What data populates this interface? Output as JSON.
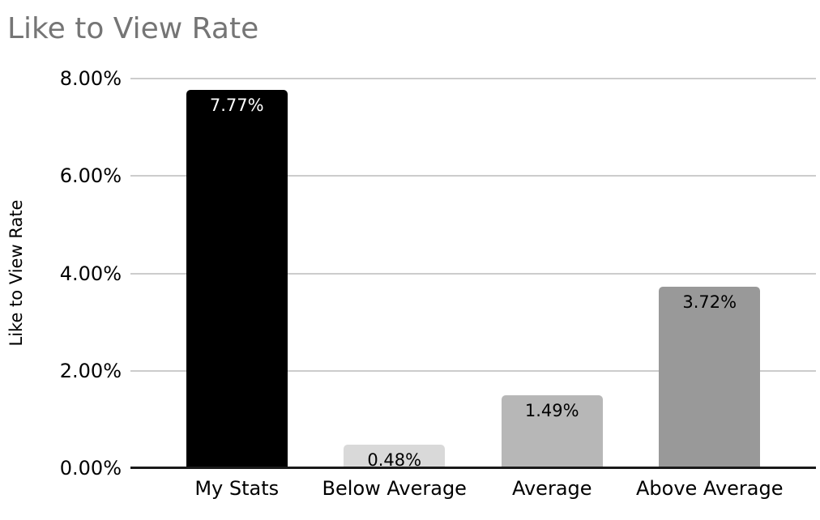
{
  "chart_data": {
    "type": "bar",
    "title": "Like to View Rate",
    "ylabel": "Like to View Rate",
    "xlabel": "",
    "categories": [
      "My Stats",
      "Below Average",
      "Average",
      "Above Average"
    ],
    "values": [
      7.77,
      0.48,
      1.49,
      3.72
    ],
    "value_labels": [
      "7.77%",
      "0.48%",
      "1.49%",
      "3.72%"
    ],
    "bar_colors": [
      "#000000",
      "#d9d9d9",
      "#b7b7b7",
      "#999999"
    ],
    "value_label_colors": [
      "#ffffff",
      "#000000",
      "#000000",
      "#000000"
    ],
    "ylim": [
      0,
      8
    ],
    "ytick_values": [
      0,
      2,
      4,
      6,
      8
    ],
    "ytick_labels": [
      "0.00%",
      "2.00%",
      "4.00%",
      "6.00%",
      "8.00%"
    ],
    "grid": true,
    "legend_position": "none"
  },
  "colors": {
    "background": "#ffffff",
    "title_text": "#757575",
    "axis_text": "#000000",
    "gridline": "#cccccc",
    "axis_line": "#1a1a1a"
  }
}
